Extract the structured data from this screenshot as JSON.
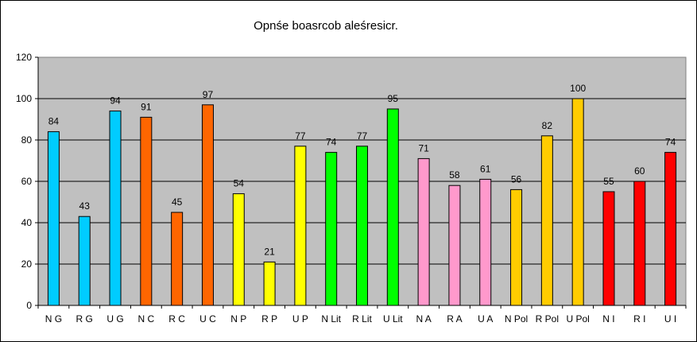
{
  "chart_data": {
    "type": "bar",
    "title": "Opnśe boasrcob aleśresicr.",
    "xlabel": "",
    "ylabel": "",
    "ylim": [
      0,
      120
    ],
    "yticks": [
      0,
      20,
      40,
      60,
      80,
      100,
      120
    ],
    "grid": true,
    "legend": "none",
    "plot_background": "#c0c0c0",
    "categories": [
      "N G",
      "R G",
      "U G",
      "N C",
      "R C",
      "U C",
      "N P",
      "R P",
      "U P",
      "N Lit",
      "R Lit",
      "U Lit",
      "N A",
      "R A",
      "U A",
      "N Pol",
      "R Pol",
      "U Pol",
      "N I",
      "R I",
      "U I"
    ],
    "values": [
      84,
      43,
      94,
      91,
      45,
      97,
      54,
      21,
      77,
      74,
      77,
      95,
      71,
      58,
      61,
      56,
      82,
      100,
      55,
      60,
      74
    ],
    "colors": [
      "#00ccff",
      "#00ccff",
      "#00ccff",
      "#ff6600",
      "#ff6600",
      "#ff6600",
      "#ffff00",
      "#ffff00",
      "#ffff00",
      "#00ff00",
      "#00ff00",
      "#00ff00",
      "#ff99cc",
      "#ff99cc",
      "#ff99cc",
      "#ffcc00",
      "#ffcc00",
      "#ffcc00",
      "#ff0000",
      "#ff0000",
      "#ff0000"
    ]
  }
}
